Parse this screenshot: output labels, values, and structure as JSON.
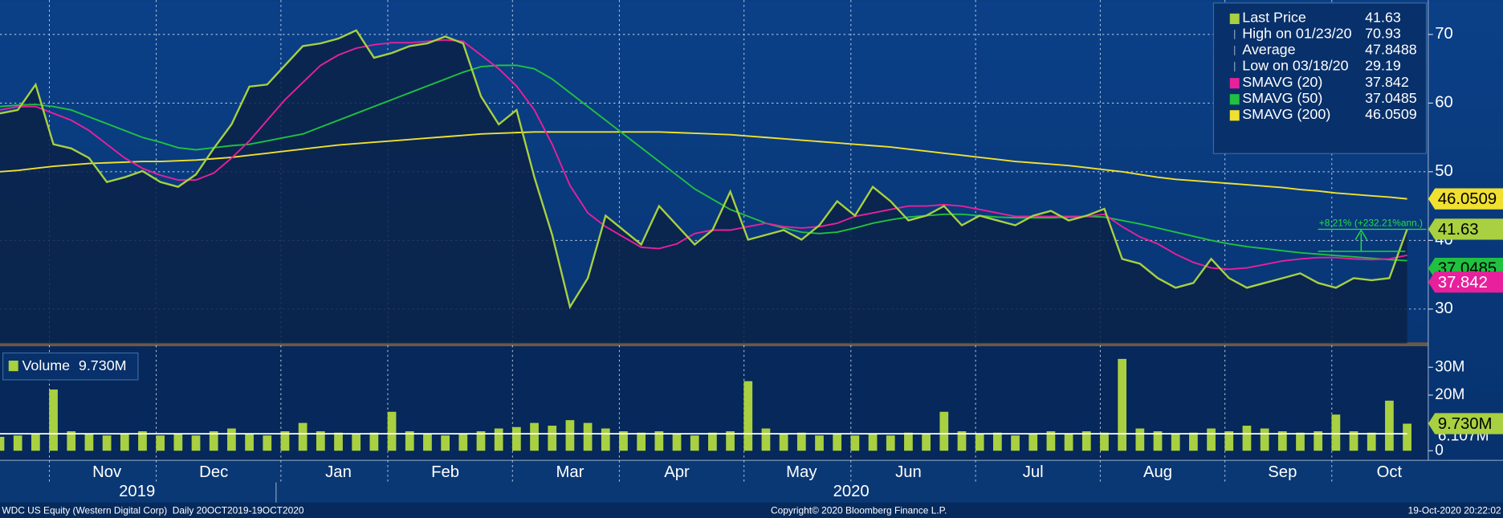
{
  "chart_data": {
    "type": "line",
    "categories": [
      null,
      null,
      null,
      null,
      null,
      null,
      "Nov",
      null,
      null,
      null,
      null,
      null,
      "Dec",
      null,
      null,
      null,
      null,
      null,
      null,
      "Jan",
      null,
      null,
      null,
      null,
      null,
      "Feb",
      null,
      null,
      null,
      null,
      null,
      null,
      "Mar",
      null,
      null,
      null,
      null,
      null,
      "Apr",
      null,
      null,
      null,
      null,
      null,
      null,
      "May",
      null,
      null,
      null,
      null,
      null,
      "Jun",
      null,
      null,
      null,
      null,
      null,
      null,
      "Jul",
      null,
      null,
      null,
      null,
      null,
      null,
      "Aug",
      null,
      null,
      null,
      null,
      null,
      null,
      "Sep",
      null,
      null,
      null,
      null,
      null,
      "Oct",
      null
    ],
    "x_groups": [
      "2019",
      "2020"
    ],
    "ylim": [
      25,
      75
    ],
    "yticks": [
      30,
      40,
      50,
      60,
      70
    ],
    "grid": true,
    "series": [
      {
        "name": "Last Price",
        "color": "#a8d040",
        "last": 41.63,
        "values": [
          58.5,
          59,
          62.7,
          54,
          53.4,
          52,
          48.5,
          49.2,
          50.1,
          48.5,
          47.8,
          49.6,
          53.4,
          56.9,
          62.4,
          62.7,
          65.5,
          68.3,
          68.7,
          69.4,
          70.6,
          66.6,
          67.3,
          68.3,
          68.7,
          69.7,
          68.7,
          61,
          56.9,
          59,
          49.2,
          40.8,
          30.3,
          34.5,
          43.6,
          41.5,
          39.4,
          45,
          42.2,
          39.4,
          41.5,
          47.1,
          40.1,
          40.8,
          41.5,
          40.1,
          42.2,
          45.7,
          43.6,
          47.8,
          45.7,
          42.9,
          43.6,
          45,
          42.2,
          43.6,
          42.9,
          42.2,
          43.6,
          44.3,
          42.9,
          43.6,
          44.6,
          37.3,
          36.6,
          34.5,
          33.1,
          33.8,
          37.3,
          34.5,
          33.1,
          33.8,
          34.5,
          35.2,
          33.8,
          33.1,
          34.5,
          34.2,
          34.5,
          41.63
        ]
      },
      {
        "name": "SMAVG (20)",
        "color": "#e8209c",
        "last": 37.842,
        "values": [
          59,
          59.5,
          59.5,
          58.5,
          57.5,
          56,
          54,
          52,
          50.5,
          49.5,
          48.8,
          48.8,
          49.8,
          52,
          54.5,
          57.5,
          60.5,
          63,
          65.5,
          67,
          68,
          68.5,
          68.8,
          68.8,
          69,
          69.2,
          69,
          67,
          65,
          62.5,
          59,
          54,
          48,
          44,
          42,
          40.5,
          39,
          38.8,
          39.5,
          41,
          41.5,
          41.5,
          42,
          42.5,
          42,
          41.8,
          42,
          42.5,
          43.5,
          44,
          44.5,
          45,
          45,
          45.2,
          45,
          44.5,
          44,
          43.5,
          43.5,
          43.5,
          43.5,
          43.5,
          43.8,
          42,
          40.5,
          39.5,
          38,
          36.8,
          36,
          35.8,
          36,
          36.5,
          37,
          37.3,
          37.5,
          37.5,
          37.3,
          37.2,
          37.3,
          37.842
        ]
      },
      {
        "name": "SMAVG (50)",
        "color": "#20c040",
        "last": 37.0485,
        "values": [
          59.5,
          59.7,
          59.8,
          59.5,
          59,
          58,
          57,
          56,
          55,
          54.3,
          53.5,
          53.2,
          53.5,
          53.8,
          54,
          54.5,
          55,
          55.5,
          56.5,
          57.5,
          58.5,
          59.5,
          60.5,
          61.5,
          62.5,
          63.5,
          64.5,
          65.3,
          65.5,
          65.5,
          65,
          63.5,
          61.5,
          59.5,
          57.5,
          55.5,
          53.5,
          51.5,
          49.5,
          47.5,
          46,
          44.5,
          43.5,
          42.5,
          41.8,
          41.2,
          41,
          41.2,
          41.8,
          42.5,
          43,
          43.4,
          43.6,
          43.8,
          43.8,
          43.6,
          43.4,
          43.3,
          43.3,
          43.3,
          43.4,
          43.5,
          43.4,
          42.9,
          42.4,
          41.8,
          41.2,
          40.6,
          40,
          39.5,
          39.1,
          38.8,
          38.5,
          38.2,
          38,
          37.8,
          37.6,
          37.4,
          37.2,
          37.0485
        ]
      },
      {
        "name": "SMAVG (200)",
        "color": "#f0e030",
        "last": 46.0509,
        "values": [
          50,
          50.2,
          50.5,
          50.8,
          51,
          51.2,
          51.3,
          51.4,
          51.5,
          51.5,
          51.6,
          51.7,
          51.9,
          52.1,
          52.4,
          52.7,
          53,
          53.3,
          53.6,
          53.9,
          54.1,
          54.3,
          54.5,
          54.7,
          54.9,
          55.1,
          55.3,
          55.5,
          55.6,
          55.7,
          55.8,
          55.8,
          55.8,
          55.8,
          55.8,
          55.8,
          55.8,
          55.8,
          55.7,
          55.6,
          55.5,
          55.4,
          55.2,
          55,
          54.8,
          54.6,
          54.4,
          54.2,
          54,
          53.8,
          53.6,
          53.3,
          53,
          52.7,
          52.4,
          52.1,
          51.8,
          51.5,
          51.3,
          51.1,
          50.9,
          50.6,
          50.3,
          50,
          49.6,
          49.2,
          48.9,
          48.7,
          48.5,
          48.3,
          48.1,
          47.9,
          47.7,
          47.4,
          47.2,
          46.9,
          46.7,
          46.5,
          46.3,
          46.0509
        ]
      }
    ],
    "stats": [
      {
        "name": "High on 01/23/20",
        "value": 70.93
      },
      {
        "name": "Average",
        "value": 47.8488
      },
      {
        "name": "Low on 03/18/20",
        "value": 29.19
      }
    ],
    "annotation": "+8.21% (+232.21%ann.)",
    "volume": {
      "name": "Volume",
      "color": "#a8d040",
      "last_label": "9.730M",
      "ylim": [
        -3.45,
        37.2
      ],
      "yticks": [
        0,
        {
          "value": 10,
          "label": "10M"
        },
        {
          "value": 20,
          "label": "20M"
        },
        {
          "value": 30,
          "label": "30M"
        }
      ],
      "average": {
        "value": 6.107,
        "label": "6.107M"
      },
      "values": [
        5,
        5.5,
        6,
        22,
        7,
        6,
        5.5,
        6,
        7,
        5.5,
        6,
        5.5,
        7,
        8,
        6,
        5.5,
        7,
        10,
        7,
        6.5,
        6,
        6.5,
        14,
        7,
        6,
        5.5,
        6,
        7,
        8,
        8.5,
        10,
        9,
        11,
        10,
        8,
        7,
        6.5,
        7,
        6,
        5.5,
        6.5,
        7,
        25,
        8,
        6,
        6.5,
        5.5,
        6,
        5.5,
        6,
        5.5,
        6.5,
        6,
        14,
        7,
        6,
        6.5,
        5.5,
        6,
        7,
        6,
        7,
        6.5,
        33,
        8,
        7,
        6,
        6.5,
        8,
        7,
        9,
        8,
        7,
        6.5,
        7,
        13,
        7,
        6.5,
        18,
        9.73
      ]
    },
    "footer": {
      "left": "WDC US Equity (Western Digital Corp)  Daily 20OCT2019-19OCT2020",
      "center": "Copyright© 2020 Bloomberg Finance L.P.",
      "right": "19-Oct-2020 20:22:02"
    }
  }
}
